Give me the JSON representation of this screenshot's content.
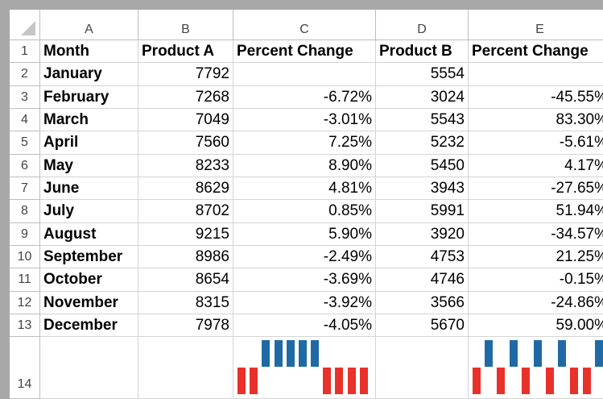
{
  "column_headers": [
    "A",
    "B",
    "C",
    "D",
    "E"
  ],
  "row_numbers": [
    1,
    2,
    3,
    4,
    5,
    6,
    7,
    8,
    9,
    10,
    11,
    12,
    13,
    14
  ],
  "table": {
    "header": [
      "Month",
      "Product A",
      "Percent Change",
      "Product B",
      "Percent Change"
    ],
    "rows": [
      [
        "January",
        "7792",
        null,
        "5554",
        null
      ],
      [
        "February",
        "7268",
        "-6.72%",
        "3024",
        "-45.55%"
      ],
      [
        "March",
        "7049",
        "-3.01%",
        "5543",
        "83.30%"
      ],
      [
        "April",
        "7560",
        "7.25%",
        "5232",
        "-5.61%"
      ],
      [
        "May",
        "8233",
        "8.90%",
        "5450",
        "4.17%"
      ],
      [
        "June",
        "8629",
        "4.81%",
        "3943",
        "-27.65%"
      ],
      [
        "July",
        "8702",
        "0.85%",
        "5991",
        "51.94%"
      ],
      [
        "August",
        "9215",
        "5.90%",
        "3920",
        "-34.57%"
      ],
      [
        "September",
        "8986",
        "-2.49%",
        "4753",
        "21.25%"
      ],
      [
        "October",
        "8654",
        "-3.69%",
        "4746",
        "-0.15%"
      ],
      [
        "November",
        "8315",
        "-3.92%",
        "3566",
        "-24.86%"
      ],
      [
        "December",
        "7978",
        "-4.05%",
        "5670",
        "59.00%"
      ]
    ]
  }
}
